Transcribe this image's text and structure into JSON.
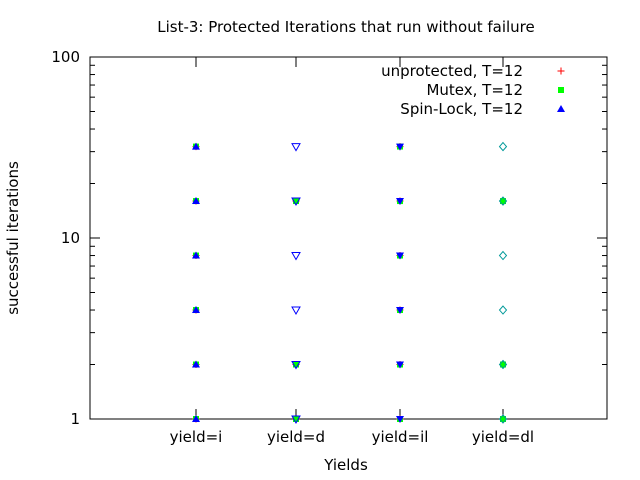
{
  "chart_data": {
    "type": "scatter",
    "title": "List-3: Protected Iterations that run without failure",
    "xlabel": "Yields",
    "ylabel": "successful iterations",
    "yscale": "log",
    "ylim": [
      1,
      100
    ],
    "yticks": [
      {
        "value": 1,
        "label": "1"
      },
      {
        "value": 10,
        "label": "10"
      },
      {
        "value": 100,
        "label": "100"
      }
    ],
    "categories": [
      "yield=i",
      "yield=d",
      "yield=il",
      "yield=dl"
    ],
    "legend_position": "top-right",
    "grid": false,
    "series": [
      {
        "name": "unprotected, T=12",
        "marker": "plus",
        "color": "#ff0000",
        "points": [
          {
            "x": "yield=i",
            "y": 1
          },
          {
            "x": "yield=i",
            "y": 2
          },
          {
            "x": "yield=i",
            "y": 4
          },
          {
            "x": "yield=i",
            "y": 8
          },
          {
            "x": "yield=i",
            "y": 16
          },
          {
            "x": "yield=i",
            "y": 32
          },
          {
            "x": "yield=d",
            "y": 1
          },
          {
            "x": "yield=d",
            "y": 2
          },
          {
            "x": "yield=d",
            "y": 16
          },
          {
            "x": "yield=il",
            "y": 1
          },
          {
            "x": "yield=il",
            "y": 2
          },
          {
            "x": "yield=il",
            "y": 4
          },
          {
            "x": "yield=il",
            "y": 8
          },
          {
            "x": "yield=il",
            "y": 16
          },
          {
            "x": "yield=il",
            "y": 32
          },
          {
            "x": "yield=dl",
            "y": 1
          },
          {
            "x": "yield=dl",
            "y": 2
          },
          {
            "x": "yield=dl",
            "y": 16
          }
        ]
      },
      {
        "name": "Mutex, T=12",
        "marker": "square",
        "color": "#00ff00",
        "points": [
          {
            "x": "yield=i",
            "y": 1
          },
          {
            "x": "yield=i",
            "y": 2
          },
          {
            "x": "yield=i",
            "y": 4
          },
          {
            "x": "yield=i",
            "y": 8
          },
          {
            "x": "yield=i",
            "y": 16
          },
          {
            "x": "yield=i",
            "y": 32
          },
          {
            "x": "yield=d",
            "y": 1
          },
          {
            "x": "yield=d",
            "y": 2
          },
          {
            "x": "yield=d",
            "y": 16
          },
          {
            "x": "yield=il",
            "y": 1
          },
          {
            "x": "yield=il",
            "y": 2
          },
          {
            "x": "yield=il",
            "y": 4
          },
          {
            "x": "yield=il",
            "y": 8
          },
          {
            "x": "yield=il",
            "y": 16
          },
          {
            "x": "yield=il",
            "y": 32
          },
          {
            "x": "yield=dl",
            "y": 1
          },
          {
            "x": "yield=dl",
            "y": 2
          },
          {
            "x": "yield=dl",
            "y": 16
          }
        ]
      },
      {
        "name": "Spin-Lock, T=12",
        "marker": "triangle-up",
        "color": "#0000ff",
        "points": [
          {
            "x": "yield=i",
            "y": 1
          },
          {
            "x": "yield=i",
            "y": 2
          },
          {
            "x": "yield=i",
            "y": 4
          },
          {
            "x": "yield=i",
            "y": 8
          },
          {
            "x": "yield=i",
            "y": 16
          },
          {
            "x": "yield=i",
            "y": 32
          }
        ]
      }
    ],
    "unlabeled_series": [
      {
        "marker": "triangle-down-open",
        "color": "#0000ff",
        "points": [
          {
            "x": "yield=d",
            "y": 1
          },
          {
            "x": "yield=d",
            "y": 2
          },
          {
            "x": "yield=d",
            "y": 4
          },
          {
            "x": "yield=d",
            "y": 8
          },
          {
            "x": "yield=d",
            "y": 16
          },
          {
            "x": "yield=d",
            "y": 32
          }
        ]
      },
      {
        "marker": "triangle-down",
        "color": "#0000ff",
        "points": [
          {
            "x": "yield=il",
            "y": 1
          },
          {
            "x": "yield=il",
            "y": 2
          },
          {
            "x": "yield=il",
            "y": 4
          },
          {
            "x": "yield=il",
            "y": 8
          },
          {
            "x": "yield=il",
            "y": 16
          },
          {
            "x": "yield=il",
            "y": 32
          }
        ]
      },
      {
        "marker": "diamond-open",
        "color": "#009999",
        "points": [
          {
            "x": "yield=dl",
            "y": 1
          },
          {
            "x": "yield=dl",
            "y": 2
          },
          {
            "x": "yield=dl",
            "y": 4
          },
          {
            "x": "yield=dl",
            "y": 8
          },
          {
            "x": "yield=dl",
            "y": 16
          },
          {
            "x": "yield=dl",
            "y": 32
          }
        ]
      }
    ]
  }
}
